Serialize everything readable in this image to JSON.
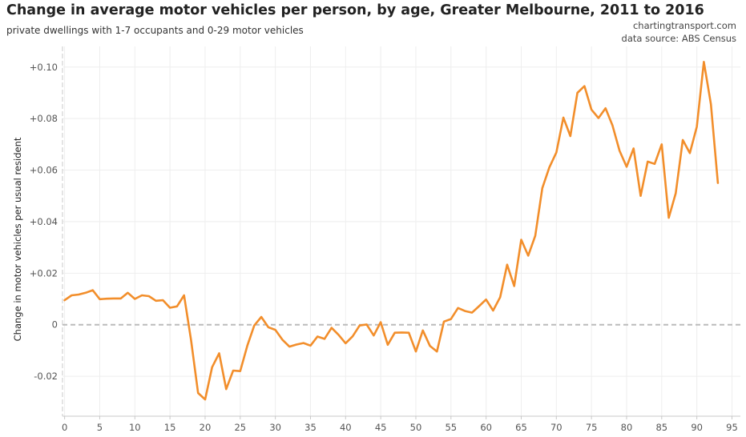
{
  "header": {
    "title": "Change in average motor vehicles per person, by age, Greater Melbourne, 2011 to 2016",
    "subtitle": "private dwellings with 1-7 occupants and 0-29 motor vehicles",
    "credit_site": "chartingtransport.com",
    "credit_source": "data source: ABS Census"
  },
  "colors": {
    "line": "#F28E2B",
    "zero_line": "#bbbbbb",
    "grid": "#eeeeee",
    "axis": "#c8c8c8"
  },
  "chart_data": {
    "type": "line",
    "title": "Change in average motor vehicles per person, by age, Greater Melbourne, 2011 to 2016",
    "xlabel": "",
    "ylabel": "Change in motor vehicles per usual resident",
    "xlim": [
      -0.3,
      96.2
    ],
    "ylim": [
      -0.0355,
      0.108
    ],
    "x_ticks": [
      0,
      5,
      10,
      15,
      20,
      25,
      30,
      35,
      40,
      45,
      50,
      55,
      60,
      65,
      70,
      75,
      80,
      85,
      90,
      95
    ],
    "x_tick_labels": [
      "0",
      "5",
      "10",
      "15",
      "20",
      "25",
      "30",
      "35",
      "40",
      "45",
      "50",
      "55",
      "60",
      "65",
      "70",
      "75",
      "80",
      "85",
      "90",
      "95"
    ],
    "y_ticks": [
      -0.02,
      0,
      0.02,
      0.04,
      0.06,
      0.08,
      0.1
    ],
    "y_tick_labels": [
      "-0.02",
      "0",
      "+0.02",
      "+0.04",
      "+0.06",
      "+0.08",
      "+0.10"
    ],
    "reference_line": 0,
    "series": [
      {
        "name": "Change in motor vehicles per usual resident",
        "x": [
          0,
          1,
          2,
          3,
          4,
          5,
          6,
          7,
          8,
          9,
          10,
          11,
          12,
          13,
          14,
          15,
          16,
          17,
          18,
          19,
          20,
          21,
          22,
          23,
          24,
          25,
          26,
          27,
          28,
          29,
          30,
          31,
          32,
          33,
          34,
          35,
          36,
          37,
          38,
          39,
          40,
          41,
          42,
          43,
          44,
          45,
          46,
          47,
          48,
          49,
          50,
          51,
          52,
          53,
          54,
          55,
          56,
          57,
          58,
          59,
          60,
          61,
          62,
          63,
          64,
          65,
          66,
          67,
          68,
          69,
          70,
          71,
          72,
          73,
          74,
          75,
          76,
          77,
          78,
          79,
          80,
          81,
          82,
          83,
          84,
          85,
          86,
          87,
          88,
          89,
          90,
          91,
          92,
          93
        ],
        "values": [
          0.0095,
          0.0114,
          0.0117,
          0.0124,
          0.0134,
          0.0099,
          0.0101,
          0.0102,
          0.0102,
          0.0124,
          0.01,
          0.0114,
          0.0111,
          0.0093,
          0.0095,
          0.0066,
          0.0071,
          0.0114,
          -0.0059,
          -0.0265,
          -0.029,
          -0.0165,
          -0.0111,
          -0.025,
          -0.0178,
          -0.018,
          -0.0082,
          -0.0003,
          0.003,
          -0.001,
          -0.002,
          -0.0058,
          -0.0085,
          -0.0077,
          -0.0071,
          -0.0081,
          -0.0046,
          -0.0055,
          -0.0012,
          -0.0039,
          -0.0072,
          -0.0045,
          -0.0003,
          0.0001,
          -0.0042,
          0.001,
          -0.0078,
          -0.0031,
          -0.003,
          -0.0031,
          -0.0104,
          -0.0022,
          -0.0082,
          -0.0104,
          0.0012,
          0.0022,
          0.0065,
          0.0053,
          0.0047,
          0.0072,
          0.0098,
          0.0055,
          0.0107,
          0.0233,
          0.015,
          0.033,
          0.0268,
          0.0345,
          0.053,
          0.061,
          0.0668,
          0.0804,
          0.0732,
          0.09,
          0.0926,
          0.0835,
          0.0802,
          0.084,
          0.0773,
          0.0675,
          0.0613,
          0.0684,
          0.05,
          0.0633,
          0.0624,
          0.07,
          0.0415,
          0.051,
          0.0717,
          0.0666,
          0.0768,
          0.102,
          0.0856,
          0.055
        ]
      }
    ],
    "grid": true,
    "legend": "none"
  }
}
